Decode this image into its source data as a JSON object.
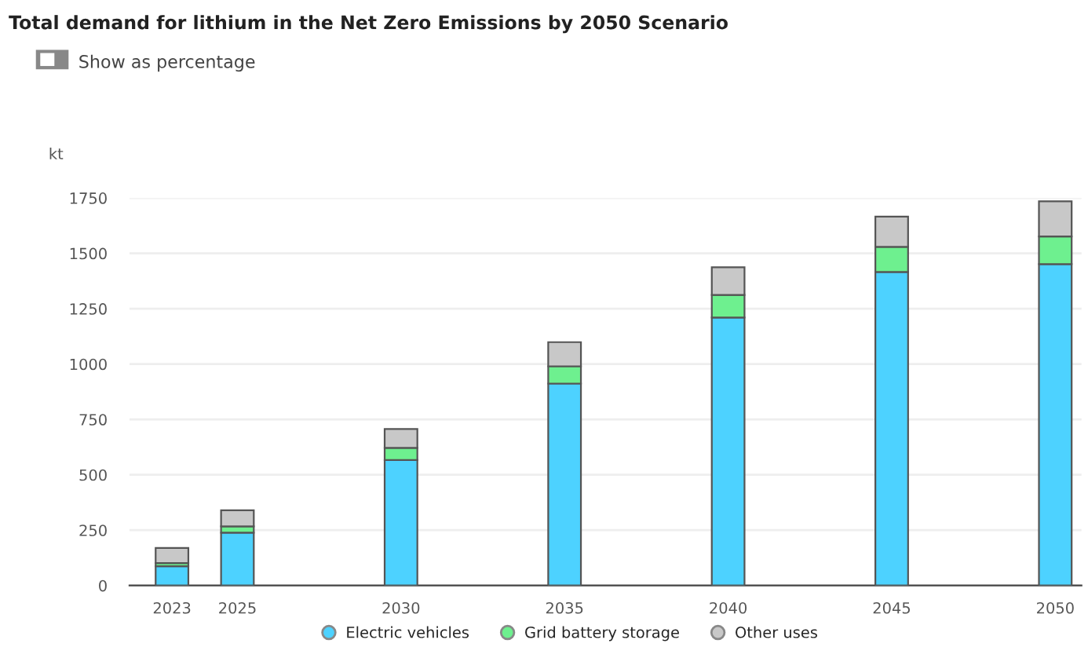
{
  "chart_data": {
    "type": "bar",
    "title": "Total demand for lithium in the Net Zero Emissions by 2050 Scenario",
    "subtitle": "Show as percentage",
    "ylabel": "kt",
    "x": [
      2023,
      2025,
      2030,
      2035,
      2040,
      2045,
      2050
    ],
    "stacked": true,
    "series": [
      {
        "name": "Electric vehicles",
        "color": "#4dd2ff",
        "values": [
          87,
          239,
          567,
          912,
          1210,
          1416,
          1451
        ]
      },
      {
        "name": "Grid battery storage",
        "color": "#6ef08f",
        "values": [
          14,
          28,
          55,
          78,
          102,
          113,
          125
        ]
      },
      {
        "name": "Other uses",
        "color": "#c8c8c8",
        "values": [
          69,
          73,
          85,
          109,
          125,
          137,
          159
        ]
      }
    ],
    "xlim": [
      2021.7,
      2050.8
    ],
    "xticks": [
      2023,
      2025,
      2030,
      2035,
      2040,
      2045,
      2050
    ],
    "ylim": [
      0,
      1750
    ],
    "yticks": [
      0,
      250,
      500,
      750,
      1000,
      1250,
      1500,
      1750
    ],
    "grid": "y",
    "legend": "bottom"
  }
}
